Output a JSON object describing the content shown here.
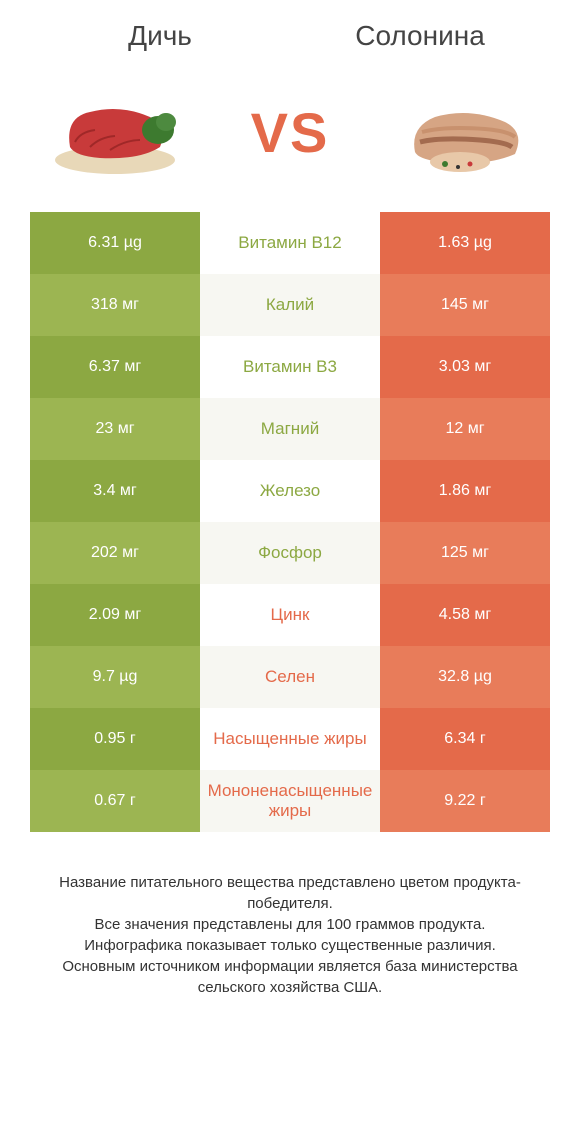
{
  "header": {
    "left_title": "Дичь",
    "right_title": "Солонина",
    "vs": "VS"
  },
  "colors": {
    "green_dark": "#8ca842",
    "green_light": "#9cb552",
    "orange_dark": "#e46a4a",
    "orange_light": "#e87c5a",
    "row_bg_odd": "#ffffff",
    "row_bg_even": "#f7f7f2",
    "text_green": "#8ca842",
    "text_orange": "#e46a4a",
    "meat_red": "#c83a3a",
    "bacon_tan": "#d6a584",
    "bacon_dark": "#a36b4f",
    "parsley": "#3d7a2f",
    "board": "#e8d8b8"
  },
  "rows": [
    {
      "left": "6.31 µg",
      "mid": "Витамин B12",
      "right": "1.63 µg",
      "winner": "left"
    },
    {
      "left": "318 мг",
      "mid": "Калий",
      "right": "145 мг",
      "winner": "left"
    },
    {
      "left": "6.37 мг",
      "mid": "Витамин B3",
      "right": "3.03 мг",
      "winner": "left"
    },
    {
      "left": "23 мг",
      "mid": "Магний",
      "right": "12 мг",
      "winner": "left"
    },
    {
      "left": "3.4 мг",
      "mid": "Железо",
      "right": "1.86 мг",
      "winner": "left"
    },
    {
      "left": "202 мг",
      "mid": "Фосфор",
      "right": "125 мг",
      "winner": "left"
    },
    {
      "left": "2.09 мг",
      "mid": "Цинк",
      "right": "4.58 мг",
      "winner": "right"
    },
    {
      "left": "9.7 µg",
      "mid": "Селен",
      "right": "32.8 µg",
      "winner": "right"
    },
    {
      "left": "0.95 г",
      "mid": "Насыщенные жиры",
      "right": "6.34 г",
      "winner": "right"
    },
    {
      "left": "0.67 г",
      "mid": "Мононенасыщенные жиры",
      "right": "9.22 г",
      "winner": "right"
    }
  ],
  "footer": {
    "line1": "Название питательного вещества представлено цветом продукта-победителя.",
    "line2": "Все значения представлены для 100 граммов продукта.",
    "line3": "Инфографика показывает только существенные различия.",
    "line4": "Основным источником информации является база министерства сельского хозяйства США."
  }
}
